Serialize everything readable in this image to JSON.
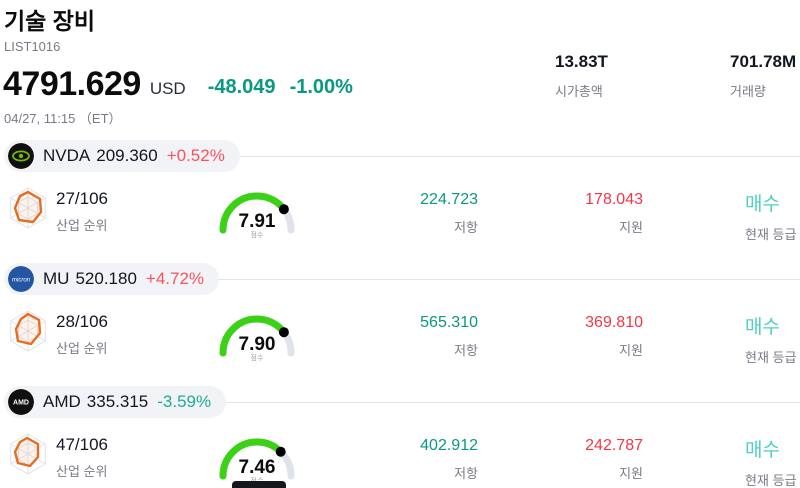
{
  "header": {
    "title": "기술 장비",
    "list_id": "LIST1016",
    "price": "4791.629",
    "currency": "USD",
    "change_abs": "-48.049",
    "change_pct": "-1.00%",
    "change_color": "#089981",
    "datetime": "04/27, 11:15 （ET）",
    "market_cap": {
      "value": "13.83T",
      "label": "시가총액"
    },
    "volume": {
      "value": "701.78M",
      "label": "거래량"
    }
  },
  "labels": {
    "industry_rank": "산업 순위",
    "score": "점수",
    "resistance": "저항",
    "support": "지원",
    "current_rating": "현재 등급"
  },
  "colors": {
    "up": "#f7525f",
    "down": "#22ab94",
    "resistance": "#089981",
    "support": "#f23645",
    "rating": "#4ed0c2",
    "gauge_green": "#3bd117",
    "gauge_track": "#e0e3eb",
    "gauge_dot": "#000000"
  },
  "icons": {
    "rank_icon": "radar-polygon-icon",
    "logos": [
      "nvidia-logo",
      "micron-logo",
      "amd-logo"
    ]
  },
  "rows": [
    {
      "ticker": "NVDA",
      "price": "209.360",
      "change": "+0.52%",
      "change_color": "#f7525f",
      "rank": "27/106",
      "score": "7.91",
      "resistance": "224.723",
      "support": "178.043",
      "rating": "매수"
    },
    {
      "ticker": "MU",
      "price": "520.180",
      "change": "+4.72%",
      "change_color": "#f7525f",
      "rank": "28/106",
      "score": "7.90",
      "resistance": "565.310",
      "support": "369.810",
      "rating": "매수"
    },
    {
      "ticker": "AMD",
      "price": "335.315",
      "change": "-3.59%",
      "change_color": "#22ab94",
      "rank": "47/106",
      "score": "7.46",
      "resistance": "402.912",
      "support": "242.787",
      "rating": "매수"
    }
  ]
}
